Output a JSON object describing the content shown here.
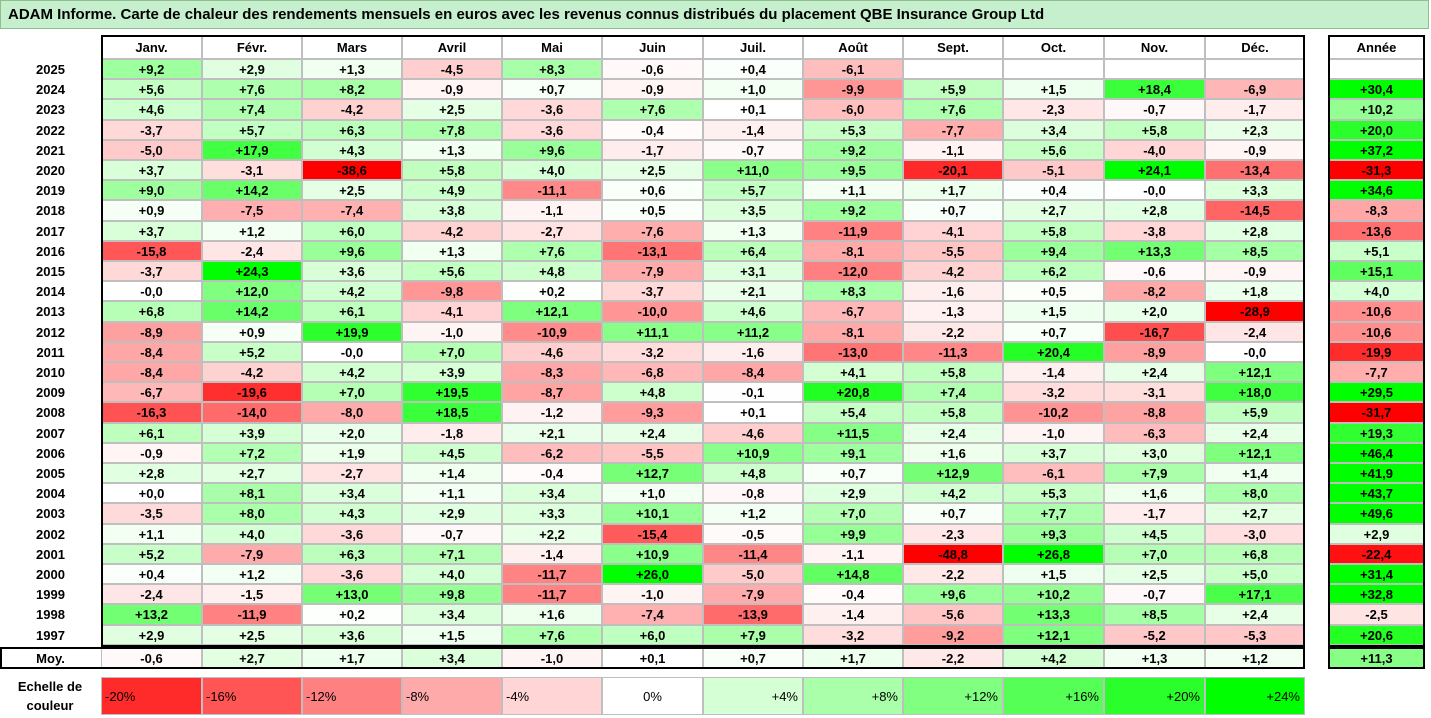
{
  "title": "ADAM Informe. Carte de chaleur des rendements mensuels en euros avec les revenus connus distribués du placement QBE Insurance Group Ltd",
  "chart_data": {
    "type": "heatmap",
    "title": "ADAM Informe. Carte de chaleur des rendements mensuels en euros avec les revenus connus distribués du placement QBE Insurance Group Ltd",
    "columns": [
      "Janv.",
      "Févr.",
      "Mars",
      "Avril",
      "Mai",
      "Juin",
      "Juil.",
      "Août",
      "Sept.",
      "Oct.",
      "Nov.",
      "Déc."
    ],
    "year_column_label": "Année",
    "rows": [
      {
        "year": "2025",
        "values": [
          "+9,2",
          "+2,9",
          "+1,3",
          "-4,5",
          "+8,3",
          "-0,6",
          "+0,4",
          "-6,1",
          "",
          "",
          "",
          ""
        ],
        "annual": ""
      },
      {
        "year": "2024",
        "values": [
          "+5,6",
          "+7,6",
          "+8,2",
          "-0,9",
          "+0,7",
          "-0,9",
          "+1,0",
          "-9,9",
          "+5,9",
          "+1,5",
          "+18,4",
          "-6,9"
        ],
        "annual": "+30,4"
      },
      {
        "year": "2023",
        "values": [
          "+4,6",
          "+7,4",
          "-4,2",
          "+2,5",
          "-3,6",
          "+7,6",
          "+0,1",
          "-6,0",
          "+7,6",
          "-2,3",
          "-0,7",
          "-1,7"
        ],
        "annual": "+10,2"
      },
      {
        "year": "2022",
        "values": [
          "-3,7",
          "+5,7",
          "+6,3",
          "+7,8",
          "-3,6",
          "-0,4",
          "-1,4",
          "+5,3",
          "-7,7",
          "+3,4",
          "+5,8",
          "+2,3"
        ],
        "annual": "+20,0"
      },
      {
        "year": "2021",
        "values": [
          "-5,0",
          "+17,9",
          "+4,3",
          "+1,3",
          "+9,6",
          "-1,7",
          "-0,7",
          "+9,2",
          "-1,1",
          "+5,6",
          "-4,0",
          "-0,9"
        ],
        "annual": "+37,2"
      },
      {
        "year": "2020",
        "values": [
          "+3,7",
          "-3,1",
          "-38,6",
          "+5,8",
          "+4,0",
          "+2,5",
          "+11,0",
          "+9,5",
          "-20,1",
          "-5,1",
          "+24,1",
          "-13,4"
        ],
        "annual": "-31,3"
      },
      {
        "year": "2019",
        "values": [
          "+9,0",
          "+14,2",
          "+2,5",
          "+4,9",
          "-11,1",
          "+0,6",
          "+5,7",
          "+1,1",
          "+1,7",
          "+0,4",
          "-0,0",
          "+3,3"
        ],
        "annual": "+34,6"
      },
      {
        "year": "2018",
        "values": [
          "+0,9",
          "-7,5",
          "-7,4",
          "+3,8",
          "-1,1",
          "+0,5",
          "+3,5",
          "+9,2",
          "+0,7",
          "+2,7",
          "+2,8",
          "-14,5"
        ],
        "annual": "-8,3"
      },
      {
        "year": "2017",
        "values": [
          "+3,7",
          "+1,2",
          "+6,0",
          "-4,2",
          "-2,7",
          "-7,6",
          "+1,3",
          "-11,9",
          "-4,1",
          "+5,8",
          "-3,8",
          "+2,8"
        ],
        "annual": "-13,6"
      },
      {
        "year": "2016",
        "values": [
          "-15,8",
          "-2,4",
          "+9,6",
          "+1,3",
          "+7,6",
          "-13,1",
          "+6,4",
          "-8,1",
          "-5,5",
          "+9,4",
          "+13,3",
          "+8,5"
        ],
        "annual": "+5,1"
      },
      {
        "year": "2015",
        "values": [
          "-3,7",
          "+24,3",
          "+3,6",
          "+5,6",
          "+4,8",
          "-7,9",
          "+3,1",
          "-12,0",
          "-4,2",
          "+6,2",
          "-0,6",
          "-0,9"
        ],
        "annual": "+15,1"
      },
      {
        "year": "2014",
        "values": [
          "-0,0",
          "+12,0",
          "+4,2",
          "-9,8",
          "+0,2",
          "-3,7",
          "+2,1",
          "+8,3",
          "-1,6",
          "+0,5",
          "-8,2",
          "+1,8"
        ],
        "annual": "+4,0"
      },
      {
        "year": "2013",
        "values": [
          "+6,8",
          "+14,2",
          "+6,1",
          "-4,1",
          "+12,1",
          "-10,0",
          "+4,6",
          "-6,7",
          "-1,3",
          "+1,5",
          "+2,0",
          "-28,9"
        ],
        "annual": "-10,6"
      },
      {
        "year": "2012",
        "values": [
          "-8,9",
          "+0,9",
          "+19,9",
          "-1,0",
          "-10,9",
          "+11,1",
          "+11,2",
          "-8,1",
          "-2,2",
          "+0,7",
          "-16,7",
          "-2,4"
        ],
        "annual": "-10,6"
      },
      {
        "year": "2011",
        "values": [
          "-8,4",
          "+5,2",
          "-0,0",
          "+7,0",
          "-4,6",
          "-3,2",
          "-1,6",
          "-13,0",
          "-11,3",
          "+20,4",
          "-8,9",
          "-0,0"
        ],
        "annual": "-19,9"
      },
      {
        "year": "2010",
        "values": [
          "-8,4",
          "-4,2",
          "+4,2",
          "+3,9",
          "-8,3",
          "-6,8",
          "-8,4",
          "+4,1",
          "+5,8",
          "-1,4",
          "+2,4",
          "+12,1"
        ],
        "annual": "-7,7"
      },
      {
        "year": "2009",
        "values": [
          "-6,7",
          "-19,6",
          "+7,0",
          "+19,5",
          "-8,7",
          "+4,8",
          "-0,1",
          "+20,8",
          "+7,4",
          "-3,2",
          "-3,1",
          "+18,0"
        ],
        "annual": "+29,5"
      },
      {
        "year": "2008",
        "values": [
          "-16,3",
          "-14,0",
          "-8,0",
          "+18,5",
          "-1,2",
          "-9,3",
          "+0,1",
          "+5,4",
          "+5,8",
          "-10,2",
          "-8,8",
          "+5,9"
        ],
        "annual": "-31,7"
      },
      {
        "year": "2007",
        "values": [
          "+6,1",
          "+3,9",
          "+2,0",
          "-1,8",
          "+2,1",
          "+2,4",
          "-4,6",
          "+11,5",
          "+2,4",
          "-1,0",
          "-6,3",
          "+2,4"
        ],
        "annual": "+19,3"
      },
      {
        "year": "2006",
        "values": [
          "-0,9",
          "+7,2",
          "+1,9",
          "+4,5",
          "-6,2",
          "-5,5",
          "+10,9",
          "+9,1",
          "+1,6",
          "+3,7",
          "+3,0",
          "+12,1"
        ],
        "annual": "+46,4"
      },
      {
        "year": "2005",
        "values": [
          "+2,8",
          "+2,7",
          "-2,7",
          "+1,4",
          "-0,4",
          "+12,7",
          "+4,8",
          "+0,7",
          "+12,9",
          "-6,1",
          "+7,9",
          "+1,4"
        ],
        "annual": "+41,9"
      },
      {
        "year": "2004",
        "values": [
          "+0,0",
          "+8,1",
          "+3,4",
          "+1,1",
          "+3,4",
          "+1,0",
          "-0,8",
          "+2,9",
          "+4,2",
          "+5,3",
          "+1,6",
          "+8,0"
        ],
        "annual": "+43,7"
      },
      {
        "year": "2003",
        "values": [
          "-3,5",
          "+8,0",
          "+4,3",
          "+2,9",
          "+3,3",
          "+10,1",
          "+1,2",
          "+7,0",
          "+0,7",
          "+7,7",
          "-1,7",
          "+2,7"
        ],
        "annual": "+49,6"
      },
      {
        "year": "2002",
        "values": [
          "+1,1",
          "+4,0",
          "-3,6",
          "-0,7",
          "+2,2",
          "-15,4",
          "-0,5",
          "+9,9",
          "-2,3",
          "+9,3",
          "+4,5",
          "-3,0"
        ],
        "annual": "+2,9"
      },
      {
        "year": "2001",
        "values": [
          "+5,2",
          "-7,9",
          "+6,3",
          "+7,1",
          "-1,4",
          "+10,9",
          "-11,4",
          "-1,1",
          "-48,8",
          "+26,8",
          "+7,0",
          "+6,8"
        ],
        "annual": "-22,4"
      },
      {
        "year": "2000",
        "values": [
          "+0,4",
          "+1,2",
          "-3,6",
          "+4,0",
          "-11,7",
          "+26,0",
          "-5,0",
          "+14,8",
          "-2,2",
          "+1,5",
          "+2,5",
          "+5,0"
        ],
        "annual": "+31,4"
      },
      {
        "year": "1999",
        "values": [
          "-2,4",
          "-1,5",
          "+13,0",
          "+9,8",
          "-11,7",
          "-1,0",
          "-7,9",
          "-0,4",
          "+9,6",
          "+10,2",
          "-0,7",
          "+17,1"
        ],
        "annual": "+32,8"
      },
      {
        "year": "1998",
        "values": [
          "+13,2",
          "-11,9",
          "+0,2",
          "+3,4",
          "+1,6",
          "-7,4",
          "-13,9",
          "-1,4",
          "-5,6",
          "+13,3",
          "+8,5",
          "+2,4"
        ],
        "annual": "-2,5"
      },
      {
        "year": "1997",
        "values": [
          "+2,9",
          "+2,5",
          "+3,6",
          "+1,5",
          "+7,6",
          "+6,0",
          "+7,9",
          "-3,2",
          "-9,2",
          "+12,1",
          "-5,2",
          "-5,3"
        ],
        "annual": "+20,6"
      }
    ],
    "average": {
      "label": "Moy.",
      "values": [
        "-0,6",
        "+2,7",
        "+1,7",
        "+3,4",
        "-1,0",
        "+0,1",
        "+0,7",
        "+1,7",
        "-2,2",
        "+4,2",
        "+1,3",
        "+1,2"
      ],
      "annual": "+11,3"
    },
    "legend": {
      "label_line1": "Echelle de",
      "label_line2": "couleur",
      "items": [
        {
          "label": "-20%",
          "value": -20
        },
        {
          "label": "-16%",
          "value": -16
        },
        {
          "label": "-12%",
          "value": -12
        },
        {
          "label": "-8%",
          "value": -8
        },
        {
          "label": "-4%",
          "value": -4
        },
        {
          "label": "0%",
          "value": 0
        },
        {
          "label": "+4%",
          "value": 4
        },
        {
          "label": "+8%",
          "value": 8
        },
        {
          "label": "+12%",
          "value": 12
        },
        {
          "label": "+16%",
          "value": 16
        },
        {
          "label": "+20%",
          "value": 20
        },
        {
          "label": "+24%",
          "value": 24
        }
      ]
    },
    "colors": {
      "negative_max": "#ff0000",
      "neutral": "#ffffff",
      "positive_max": "#00ff00",
      "title_background": "#c6efce"
    }
  }
}
